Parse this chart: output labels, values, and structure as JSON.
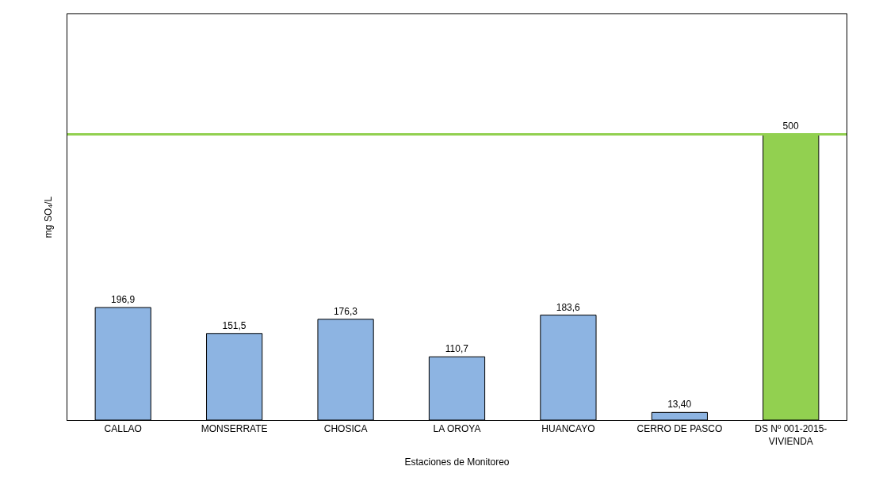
{
  "chart_data": {
    "type": "bar",
    "xlabel": "Estaciones de Monitoreo",
    "ylabel": "mg SO₄/L",
    "categories": [
      "CALLAO",
      "MONSERRATE",
      "CHOSICA",
      "LA OROYA",
      "HUANCAYO",
      "CERRO DE PASCO",
      "DS Nº 001-2015-\nVIVIENDA"
    ],
    "values": [
      196.9,
      151.5,
      176.3,
      110.7,
      183.6,
      13.4,
      500
    ],
    "value_labels": [
      "196,9",
      "151,5",
      "176,3",
      "110,7",
      "183,6",
      "13,40",
      "500"
    ],
    "colors": [
      "#8db4e2",
      "#8db4e2",
      "#8db4e2",
      "#8db4e2",
      "#8db4e2",
      "#8db4e2",
      "#92d050"
    ],
    "ylim": [
      0,
      710
    ],
    "tick_labels": "x",
    "ref_lines": [
      {
        "axis": "y",
        "value": 500,
        "color": "#92d050",
        "line_style": "solid"
      }
    ]
  }
}
